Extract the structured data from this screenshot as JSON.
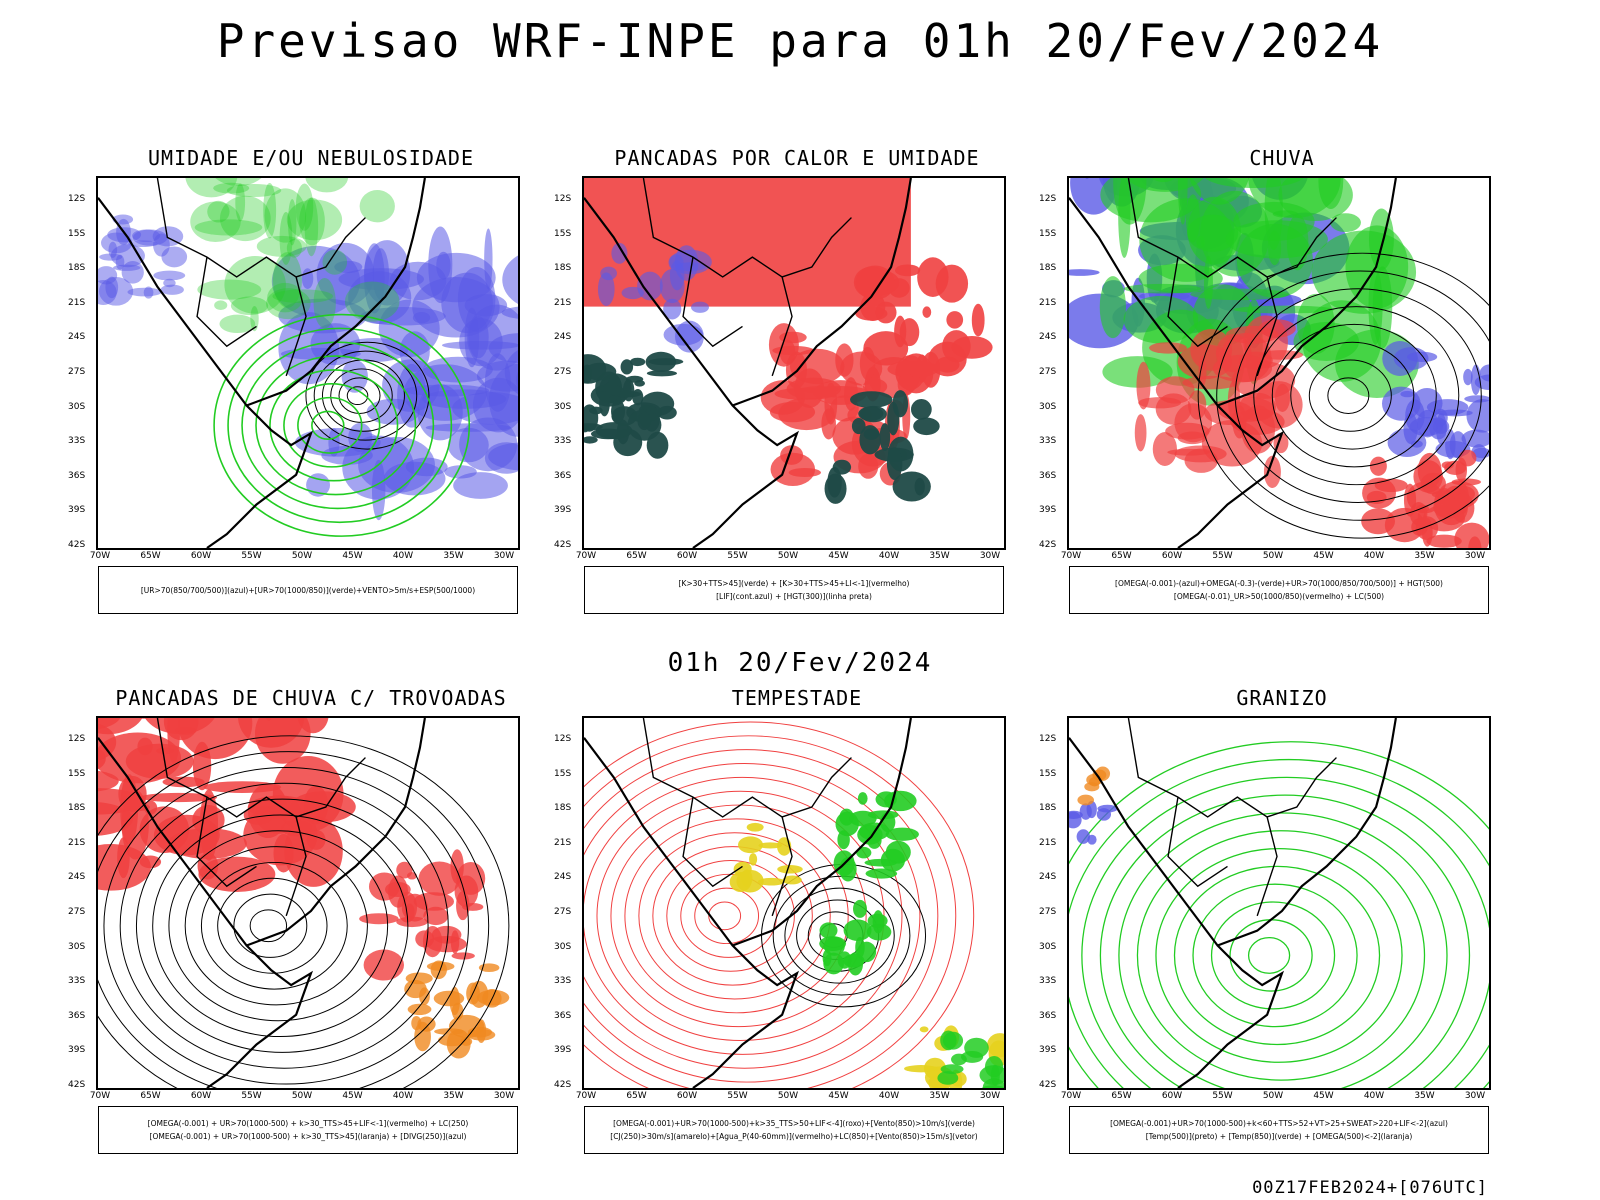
{
  "title": "Previsao WRF-INPE  para 01h 20/Fev/2024",
  "mid_date": "01h 20/Fev/2024",
  "footer": "00Z17FEB2024+[076UTC]",
  "lat_labels": [
    "12S",
    "15S",
    "18S",
    "21S",
    "24S",
    "27S",
    "30S",
    "33S",
    "36S",
    "39S",
    "42S"
  ],
  "lon_labels": [
    "70W",
    "65W",
    "60W",
    "55W",
    "50W",
    "45W",
    "40W",
    "35W",
    "30W"
  ],
  "colors": {
    "blue": "#5a5ae6",
    "green": "#22cc22",
    "red": "#f04040",
    "darkteal": "#1f4a47",
    "yellow": "#e6d21e",
    "orange": "#f08a20",
    "lightblue": "#b8b8f0"
  },
  "panels": [
    {
      "title": "UMIDADE E/OU NEBULOSIDADE",
      "legend": [
        "[UR>70(850/700/500)](azul)+[UR>70(1000/850)](verde)+VENTO>5m/s+ESP(500/1000)"
      ]
    },
    {
      "title": "PANCADAS POR CALOR E UMIDADE",
      "legend": [
        "[K>30+TTS>45](verde) + [K>30+TTS>45+LI<-1](vermelho)",
        "[LIF](cont.azul) + [HGT(300)](linha preta)"
      ]
    },
    {
      "title": "CHUVA",
      "legend": [
        "[OMEGA(-0.001)-(azul)+OMEGA(-0.3)-(verde)+UR>70(1000/850/700/500)] + HGT(500)",
        "[OMEGA(-0.01)_UR>50(1000/850)(vermelho) + LC(500)"
      ]
    },
    {
      "title": "PANCADAS DE CHUVA C/ TROVOADAS",
      "legend": [
        "[OMEGA(-0.001) + UR>70(1000-500) + k>30_TTS>45+LIF<-1](vermelho) + LC(250)",
        "[OMEGA(-0.001) + UR>70(1000-500) + k>30_TTS>45](laranja) + [DIVG(250)](azul)"
      ]
    },
    {
      "title": "TEMPESTADE",
      "legend": [
        "[OMEGA(-0.001)+UR>70(1000-500)+k>35_TTS>50+LIF<-4](roxo)+[Vento(850)>10m/s](verde)",
        "[CJ(250)>30m/s](amarelo)+[Agua_P(40-60mm)](vermelho)+LC(850)+[Vento(850)>15m/s](vetor)"
      ]
    },
    {
      "title": "GRANIZO",
      "legend": [
        "[OMEGA(-0.001)+UR>70(1000-500)+k<60+TTS>52+VT>25+SWEAT>220+LIF<-2](azul)",
        "[Temp(500)](preto) + [Temp(850)](verde) + [OMEGA(500)<-2](laranja)"
      ]
    }
  ]
}
